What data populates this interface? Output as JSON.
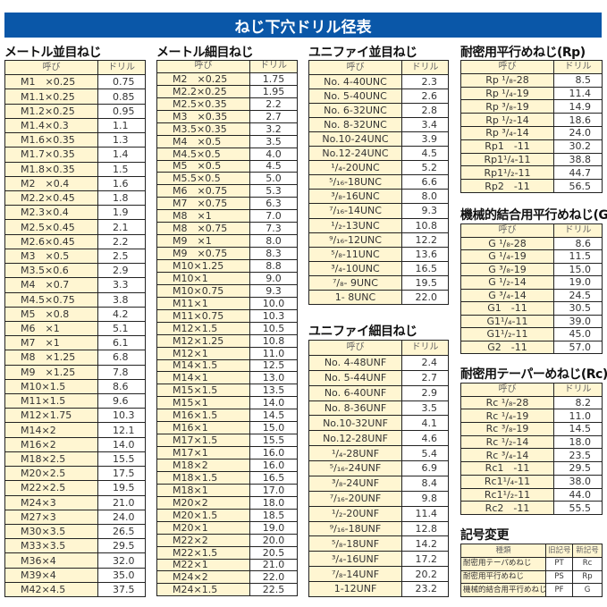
{
  "title": "ねじ下穴ドリル径表",
  "colors": {
    "title_bar": "#0a57a8",
    "cell_highlight": "#fff6d2",
    "border": "#222222"
  },
  "tables": [
    {
      "id": "metric-coarse",
      "title": "メートル並目ねじ",
      "headers": [
        "呼び",
        "ドリル"
      ],
      "rows": [
        [
          "M1　×0.25",
          "0.75"
        ],
        [
          "M1.1×0.25",
          "0.85"
        ],
        [
          "M1.2×0.25",
          "0.95"
        ],
        [
          "M1.4×0.3",
          "1.1"
        ],
        [
          "M1.6×0.35",
          "1.3"
        ],
        [
          "M1.7×0.35",
          "1.4"
        ],
        [
          "M1.8×0.35",
          "1.5"
        ],
        [
          "M2　×0.4",
          "1.6"
        ],
        [
          "M2.2×0.45",
          "1.8"
        ],
        [
          "M2.3×0.4",
          "1.9"
        ],
        [
          "M2.5×0.45",
          "2.1"
        ],
        [
          "M2.6×0.45",
          "2.2"
        ],
        [
          "M3　×0.5",
          "2.5"
        ],
        [
          "M3.5×0.6",
          "2.9"
        ],
        [
          "M4　×0.7",
          "3.3"
        ],
        [
          "M4.5×0.75",
          "3.8"
        ],
        [
          "M5　×0.8",
          "4.2"
        ],
        [
          "M6　×1",
          "5.1"
        ],
        [
          "M7　×1",
          "6.1"
        ],
        [
          "M8　×1.25",
          "6.8"
        ],
        [
          "M9　×1.25",
          "7.8"
        ],
        [
          "M10×1.5",
          "8.6"
        ],
        [
          "M11×1.5",
          "9.6"
        ],
        [
          "M12×1.75",
          "10.3"
        ],
        [
          "M14×2",
          "12.1"
        ],
        [
          "M16×2",
          "14.0"
        ],
        [
          "M18×2.5",
          "15.5"
        ],
        [
          "M20×2.5",
          "17.5"
        ],
        [
          "M22×2.5",
          "19.5"
        ],
        [
          "M24×3",
          "21.0"
        ],
        [
          "M27×3",
          "24.0"
        ],
        [
          "M30×3.5",
          "26.5"
        ],
        [
          "M33×3.5",
          "29.5"
        ],
        [
          "M36×4",
          "32.0"
        ],
        [
          "M39×4",
          "35.0"
        ],
        [
          "M42×4.5",
          "37.5"
        ]
      ]
    },
    {
      "id": "metric-fine",
      "title": "メートル細目ねじ",
      "headers": [
        "呼び",
        "ドリル"
      ],
      "rows": [
        [
          "M2　×0.25",
          "1.75"
        ],
        [
          "M2.2×0.25",
          "1.95"
        ],
        [
          "M2.5×0.35",
          "2.2"
        ],
        [
          "M3　×0.35",
          "2.7"
        ],
        [
          "M3.5×0.35",
          "3.2"
        ],
        [
          "M4　×0.5",
          "3.5"
        ],
        [
          "M4.5×0.5",
          "4.0"
        ],
        [
          "M5　×0.5",
          "4.5"
        ],
        [
          "M5.5×0.5",
          "5.0"
        ],
        [
          "M6　×0.75",
          "5.3"
        ],
        [
          "M7　×0.75",
          "6.3"
        ],
        [
          "M8　×1",
          "7.0"
        ],
        [
          "M8　×0.75",
          "7.3"
        ],
        [
          "M9　×1",
          "8.0"
        ],
        [
          "M9　×0.75",
          "8.3"
        ],
        [
          "M10×1.25",
          "8.8"
        ],
        [
          "M10×1",
          "9.0"
        ],
        [
          "M10×0.75",
          "9.3"
        ],
        [
          "M11×1",
          "10.0"
        ],
        [
          "M11×0.75",
          "10.3"
        ],
        [
          "M12×1.5",
          "10.5"
        ],
        [
          "M12×1.25",
          "10.8"
        ],
        [
          "M12×1",
          "11.0"
        ],
        [
          "M14×1.5",
          "12.5"
        ],
        [
          "M14×1",
          "13.0"
        ],
        [
          "M15×1.5",
          "13.5"
        ],
        [
          "M15×1",
          "14.0"
        ],
        [
          "M16×1.5",
          "14.5"
        ],
        [
          "M16×1",
          "15.0"
        ],
        [
          "M17×1.5",
          "15.5"
        ],
        [
          "M17×1",
          "16.0"
        ],
        [
          "M18×2",
          "16.0"
        ],
        [
          "M18×1.5",
          "16.5"
        ],
        [
          "M18×1",
          "17.0"
        ],
        [
          "M20×2",
          "18.0"
        ],
        [
          "M20×1.5",
          "18.5"
        ],
        [
          "M20×1",
          "19.0"
        ],
        [
          "M22×2",
          "20.0"
        ],
        [
          "M22×1.5",
          "20.5"
        ],
        [
          "M22×1",
          "21.0"
        ],
        [
          "M24×2",
          "22.0"
        ],
        [
          "M24×1.5",
          "22.5"
        ]
      ]
    },
    {
      "id": "unc",
      "title": "ユニファイ並目ねじ",
      "headers": [
        "呼び",
        "ドリル"
      ],
      "rows": [
        [
          "No.  4-40UNC",
          "2.3"
        ],
        [
          "No.  5-40UNC",
          "2.6"
        ],
        [
          "No.  6-32UNC",
          "2.8"
        ],
        [
          "No.  8-32UNC",
          "3.4"
        ],
        [
          "No.10-24UNC",
          "3.9"
        ],
        [
          "No.12-24UNC",
          "4.5"
        ],
        [
          "¹/₄-20UNC",
          "5.2"
        ],
        [
          "⁵/₁₆-18UNC",
          "6.6"
        ],
        [
          "³/₈-16UNC",
          "8.0"
        ],
        [
          "⁷/₁₆-14UNC",
          "9.3"
        ],
        [
          "¹/₂-13UNC",
          "10.8"
        ],
        [
          "⁹/₁₆-12UNC",
          "12.2"
        ],
        [
          "⁵/₈-11UNC",
          "13.6"
        ],
        [
          "³/₄-10UNC",
          "16.5"
        ],
        [
          "⁷/₈-  9UNC",
          "19.5"
        ],
        [
          "1-  8UNC",
          "22.0"
        ]
      ]
    },
    {
      "id": "unf",
      "title": "ユニファイ細目ねじ",
      "headers": [
        "呼び",
        "ドリル"
      ],
      "rows": [
        [
          "No.  4-48UNF",
          "2.4"
        ],
        [
          "No.  5-44UNF",
          "2.7"
        ],
        [
          "No.  6-40UNF",
          "2.9"
        ],
        [
          "No.  8-36UNF",
          "3.5"
        ],
        [
          "No.10-32UNF",
          "4.1"
        ],
        [
          "No.12-28UNF",
          "4.6"
        ],
        [
          "¹/₄-28UNF",
          "5.4"
        ],
        [
          "⁵/₁₆-24UNF",
          "6.9"
        ],
        [
          "³/₈-24UNF",
          "8.4"
        ],
        [
          "⁷/₁₆-20UNF",
          "9.8"
        ],
        [
          "¹/₂-20UNF",
          "11.4"
        ],
        [
          "⁹/₁₆-18UNF",
          "12.8"
        ],
        [
          "⁵/₈-18UNF",
          "14.2"
        ],
        [
          "³/₄-16UNF",
          "17.2"
        ],
        [
          "⁷/₈-14UNF",
          "20.2"
        ],
        [
          "1-12UNF",
          "23.2"
        ]
      ]
    },
    {
      "id": "rp",
      "title": "耐密用平行めねじ(Rp)",
      "headers": [
        "呼び",
        "ドリル"
      ],
      "rows": [
        [
          "Rp ¹/₈-28",
          "8.5"
        ],
        [
          "Rp ¹/₄-19",
          "11.4"
        ],
        [
          "Rp ³/₈-19",
          "14.9"
        ],
        [
          "Rp ¹/₂-14",
          "18.6"
        ],
        [
          "Rp ³/₄-14",
          "24.0"
        ],
        [
          "Rp1　-11",
          "30.2"
        ],
        [
          "Rp1¹/₄-11",
          "38.8"
        ],
        [
          "Rp1¹/₂-11",
          "44.7"
        ],
        [
          "Rp2　-11",
          "56.5"
        ]
      ]
    },
    {
      "id": "g",
      "title": "機械的結合用平行めねじ(G)",
      "headers": [
        "呼び",
        "ドリル"
      ],
      "rows": [
        [
          "G ¹/₈-28",
          "8.6"
        ],
        [
          "G ¹/₄-19",
          "11.5"
        ],
        [
          "G ³/₈-19",
          "15.0"
        ],
        [
          "G ¹/₂-14",
          "19.0"
        ],
        [
          "G ³/₄-14",
          "24.5"
        ],
        [
          "G1　-11",
          "30.5"
        ],
        [
          "G1¹/₄-11",
          "39.0"
        ],
        [
          "G1¹/₂-11",
          "45.0"
        ],
        [
          "G2　-11",
          "57.0"
        ]
      ]
    },
    {
      "id": "rc",
      "title": "耐密用テーパーめねじ(Rc)",
      "headers": [
        "呼び",
        "ドリル"
      ],
      "rows": [
        [
          "Rc ¹/₈-28",
          "8.2"
        ],
        [
          "Rc ¹/₄-19",
          "11.0"
        ],
        [
          "Rc ³/₈-19",
          "14.5"
        ],
        [
          "Rc ¹/₂-14",
          "18.0"
        ],
        [
          "Rc ³/₄-14",
          "23.5"
        ],
        [
          "Rc1　-11",
          "29.5"
        ],
        [
          "Rc1¹/₄-11",
          "38.0"
        ],
        [
          "Rc1¹/₂-11",
          "44.0"
        ],
        [
          "Rc2　-11",
          "55.5"
        ]
      ]
    },
    {
      "id": "symbols",
      "title": "記号変更",
      "headers": [
        "種類",
        "旧記号",
        "新記号"
      ],
      "rows": [
        [
          "耐密用テーパめねじ",
          "PT",
          "Rc"
        ],
        [
          "耐密用平行めねじ",
          "PS",
          "Rp"
        ],
        [
          "機械的結合用平行めねじ",
          "PF",
          "G"
        ]
      ]
    }
  ]
}
